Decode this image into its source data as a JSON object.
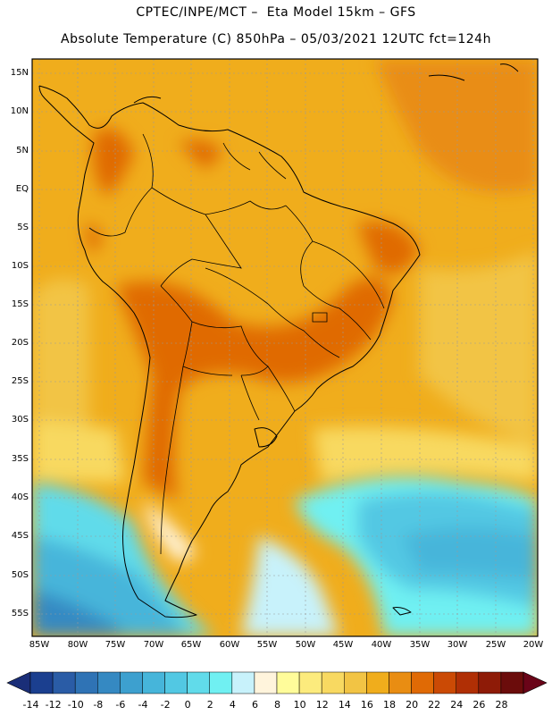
{
  "header": {
    "line1": "CPTEC/INPE/MCT –  Eta Model 15km – GFS",
    "line2": "Absolute Temperature (C) 850hPa – 05/03/2021 12UTC fct=124h"
  },
  "map": {
    "lat_labels": [
      "15N",
      "10N",
      "5N",
      "EQ",
      "5S",
      "10S",
      "15S",
      "20S",
      "25S",
      "30S",
      "35S",
      "40S",
      "45S",
      "50S",
      "55S"
    ],
    "lon_labels": [
      "85W",
      "80W",
      "75W",
      "70W",
      "65W",
      "60W",
      "55W",
      "50W",
      "45W",
      "40W",
      "35W",
      "30W",
      "25W",
      "20W"
    ],
    "lat_range": [
      -58,
      17
    ],
    "lon_range": [
      -87,
      -20
    ]
  },
  "colorbar": {
    "labels": [
      "-14",
      "-12",
      "-10",
      "-8",
      "-6",
      "-4",
      "-2",
      "0",
      "2",
      "4",
      "6",
      "8",
      "10",
      "12",
      "14",
      "16",
      "18",
      "20",
      "22",
      "24",
      "26",
      "28"
    ],
    "colors": [
      "#1b3f8f",
      "#2a5ca6",
      "#2f73b5",
      "#3589c2",
      "#3da0cf",
      "#46b5da",
      "#52c8e3",
      "#61dbea",
      "#70f0f2",
      "#c8f2fb",
      "#fff4dc",
      "#fffc9a",
      "#fceb7d",
      "#f8d961",
      "#f2c444",
      "#f0ad1c",
      "#e98d12",
      "#e06a05",
      "#cb4a05",
      "#b02f05",
      "#8e1b07",
      "#6b0c0b"
    ],
    "left_arrow_color": "#1a2e78",
    "right_arrow_color": "#6a0418"
  }
}
